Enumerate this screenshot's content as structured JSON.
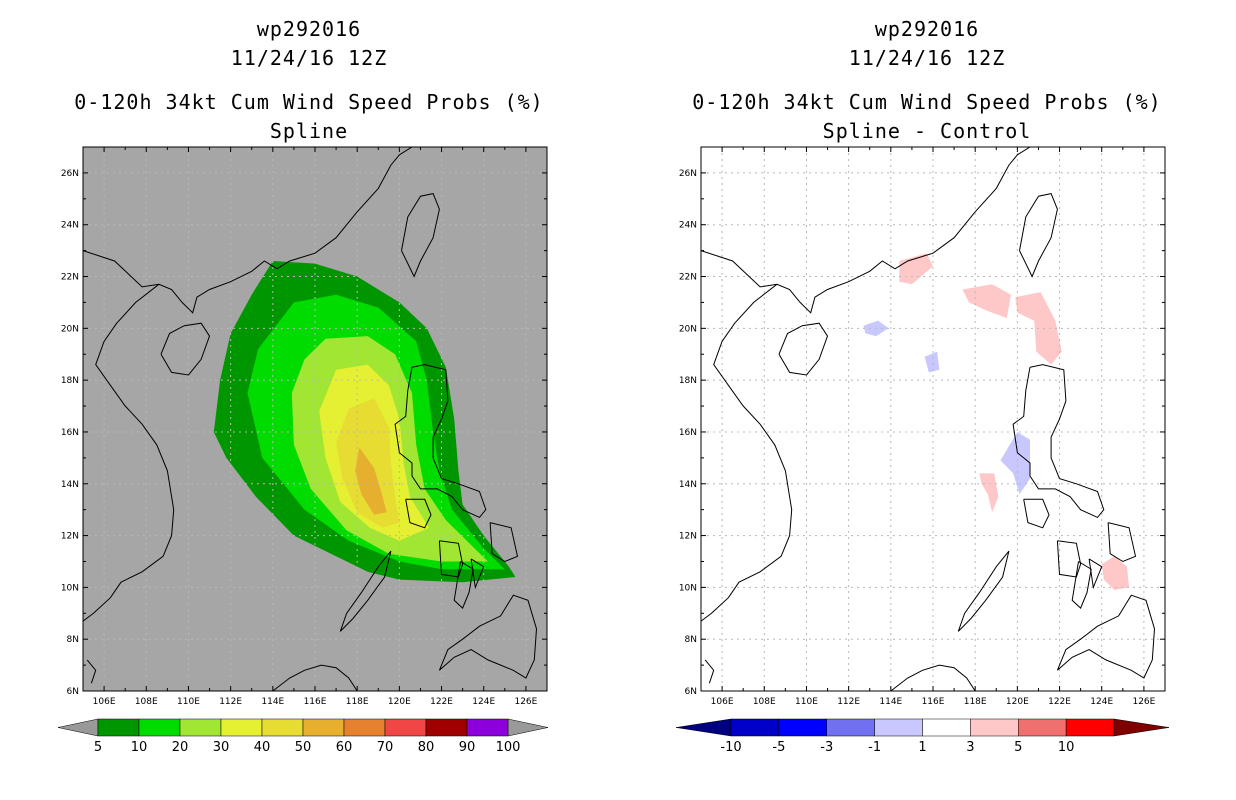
{
  "left_panel": {
    "storm_id": "wp292016",
    "datetime": "11/24/16 12Z",
    "title": "0-120h 34kt Cum Wind Speed Probs (%)",
    "subtitle": "Spline",
    "background_color": "#a6a6a6"
  },
  "right_panel": {
    "storm_id": "wp292016",
    "datetime": "11/24/16 12Z",
    "title": "0-120h 34kt Cum Wind Speed Probs (%)",
    "subtitle": "Spline - Control",
    "background_color": "#ffffff"
  },
  "map": {
    "lon_range": [
      105,
      127
    ],
    "lat_range": [
      6,
      27
    ],
    "x_ticks": [
      "106E",
      "108E",
      "110E",
      "112E",
      "114E",
      "116E",
      "118E",
      "120E",
      "122E",
      "124E",
      "126E"
    ],
    "x_tick_values": [
      106,
      108,
      110,
      112,
      114,
      116,
      118,
      120,
      122,
      124,
      126
    ],
    "y_ticks": [
      "6N",
      "8N",
      "10N",
      "12N",
      "14N",
      "16N",
      "18N",
      "20N",
      "22N",
      "24N",
      "26N"
    ],
    "y_tick_values": [
      6,
      8,
      10,
      12,
      14,
      16,
      18,
      20,
      22,
      24,
      26
    ]
  },
  "left_colorbar": {
    "labels": [
      "5",
      "10",
      "20",
      "30",
      "40",
      "50",
      "60",
      "70",
      "80",
      "90",
      "100"
    ],
    "colors": [
      "#009600",
      "#00dc00",
      "#a0e632",
      "#e6f032",
      "#e6dc32",
      "#e6af2d",
      "#e6822d",
      "#f04646",
      "#a00000",
      "#8c00dc"
    ],
    "end_color": "#999999"
  },
  "right_colorbar": {
    "labels": [
      "-10",
      "-5",
      "-3",
      "-1",
      "1",
      "3",
      "5",
      "10"
    ],
    "colors": [
      "#0000c8",
      "#0000ff",
      "#7070f0",
      "#c8c8ff",
      "#ffffff",
      "#ffc8c8",
      "#f07070",
      "#ff0000"
    ],
    "low_color": "#000080",
    "high_color": "#800000"
  },
  "chart_data": [
    {
      "type": "heatmap",
      "name": "Spline",
      "units": "%",
      "levels": [
        5,
        10,
        20,
        30,
        40,
        50,
        60,
        70,
        80,
        90,
        100
      ],
      "regions": [
        {
          "level": 5,
          "color": "#009600",
          "lonlat": [
            [
              114,
              22.6
            ],
            [
              116,
              22.5
            ],
            [
              118,
              22.0
            ],
            [
              120,
              21.0
            ],
            [
              121.3,
              20.0
            ],
            [
              122.2,
              18.5
            ],
            [
              122.6,
              16.5
            ],
            [
              122.8,
              14.5
            ],
            [
              123.0,
              13.2
            ],
            [
              124.0,
              12.0
            ],
            [
              125.2,
              10.8
            ],
            [
              125.5,
              10.4
            ],
            [
              123.0,
              10.2
            ],
            [
              120.0,
              10.3
            ],
            [
              118.5,
              10.6
            ],
            [
              117.0,
              11.2
            ],
            [
              115.0,
              12.0
            ],
            [
              113.2,
              13.5
            ],
            [
              111.8,
              15.0
            ],
            [
              111.2,
              16.0
            ],
            [
              111.5,
              18.0
            ],
            [
              112.0,
              19.8
            ],
            [
              113.0,
              21.3
            ],
            [
              114,
              22.6
            ]
          ]
        },
        {
          "level": 10,
          "color": "#00dc00",
          "lonlat": [
            [
              115,
              21.0
            ],
            [
              117,
              21.3
            ],
            [
              119,
              20.8
            ],
            [
              120.8,
              19.5
            ],
            [
              121.3,
              18.0
            ],
            [
              121.6,
              16.0
            ],
            [
              121.9,
              14.5
            ],
            [
              122.5,
              13.0
            ],
            [
              124.0,
              11.5
            ],
            [
              125.0,
              10.7
            ],
            [
              122.0,
              10.7
            ],
            [
              120.0,
              11.0
            ],
            [
              117.6,
              11.8
            ],
            [
              115.5,
              13.0
            ],
            [
              113.5,
              15.0
            ],
            [
              112.8,
              17.5
            ],
            [
              113.3,
              19.2
            ],
            [
              115,
              21.0
            ]
          ]
        },
        {
          "level": 20,
          "color": "#a0e632",
          "lonlat": [
            [
              116.5,
              19.6
            ],
            [
              118.5,
              19.7
            ],
            [
              119.8,
              19.0
            ],
            [
              120.6,
              17.5
            ],
            [
              120.8,
              15.5
            ],
            [
              121.2,
              13.8
            ],
            [
              122.2,
              12.6
            ],
            [
              124.2,
              11.0
            ],
            [
              122.0,
              11.0
            ],
            [
              119.5,
              11.3
            ],
            [
              117.5,
              12.2
            ],
            [
              115.8,
              13.8
            ],
            [
              115.0,
              15.5
            ],
            [
              114.9,
              17.5
            ],
            [
              115.5,
              18.8
            ],
            [
              116.5,
              19.6
            ]
          ]
        },
        {
          "level": 30,
          "color": "#e6f032",
          "lonlat": [
            [
              117.0,
              18.4
            ],
            [
              118.5,
              18.6
            ],
            [
              119.5,
              17.8
            ],
            [
              120.0,
              16.5
            ],
            [
              120.2,
              14.8
            ],
            [
              120.5,
              13.5
            ],
            [
              121.4,
              12.3
            ],
            [
              120.0,
              11.8
            ],
            [
              118.6,
              12.3
            ],
            [
              117.2,
              13.3
            ],
            [
              116.5,
              15.0
            ],
            [
              116.2,
              16.8
            ],
            [
              117.0,
              18.4
            ]
          ]
        },
        {
          "level": 40,
          "color": "#e6dc32",
          "lonlat": [
            [
              117.6,
              16.9
            ],
            [
              118.8,
              17.3
            ],
            [
              119.5,
              16.2
            ],
            [
              119.6,
              14.8
            ],
            [
              119.8,
              13.5
            ],
            [
              120.0,
              12.5
            ],
            [
              119.2,
              12.3
            ],
            [
              118.0,
              12.9
            ],
            [
              117.3,
              14.2
            ],
            [
              117.0,
              15.6
            ],
            [
              117.6,
              16.9
            ]
          ]
        },
        {
          "level": 50,
          "color": "#e6af2d",
          "lonlat": [
            [
              118.1,
              15.4
            ],
            [
              118.8,
              14.6
            ],
            [
              119.1,
              13.8
            ],
            [
              119.4,
              12.9
            ],
            [
              118.8,
              12.8
            ],
            [
              118.2,
              13.6
            ],
            [
              117.9,
              14.5
            ],
            [
              118.1,
              15.4
            ]
          ]
        }
      ]
    },
    {
      "type": "heatmap",
      "name": "Spline - Control",
      "units": "%",
      "levels": [
        -10,
        -5,
        -3,
        -1,
        1,
        3,
        5,
        10
      ],
      "regions": [
        {
          "level": 1,
          "color": "#ffc8c8",
          "lonlat": [
            [
              114.4,
              22.6
            ],
            [
              115.7,
              22.9
            ],
            [
              116.0,
              22.4
            ],
            [
              115.0,
              21.7
            ],
            [
              114.4,
              21.8
            ]
          ]
        },
        {
          "level": 1,
          "color": "#ffc8c8",
          "lonlat": [
            [
              117.4,
              21.5
            ],
            [
              118.8,
              21.7
            ],
            [
              119.7,
              21.3
            ],
            [
              119.5,
              20.4
            ],
            [
              118.5,
              20.7
            ],
            [
              117.7,
              21.0
            ]
          ]
        },
        {
          "level": 1,
          "color": "#ffc8c8",
          "lonlat": [
            [
              119.9,
              21.2
            ],
            [
              121.1,
              21.4
            ],
            [
              121.8,
              20.3
            ],
            [
              122.1,
              19.1
            ],
            [
              121.6,
              18.6
            ],
            [
              120.9,
              19.1
            ],
            [
              120.8,
              20.3
            ],
            [
              120.0,
              20.6
            ]
          ]
        },
        {
          "level": 1,
          "color": "#ffc8c8",
          "lonlat": [
            [
              118.2,
              14.4
            ],
            [
              118.9,
              14.4
            ],
            [
              119.1,
              13.5
            ],
            [
              118.8,
              12.9
            ],
            [
              118.6,
              13.6
            ],
            [
              118.3,
              14.0
            ]
          ]
        },
        {
          "level": 1,
          "color": "#ffc8c8",
          "lonlat": [
            [
              124.0,
              10.9
            ],
            [
              124.6,
              11.2
            ],
            [
              125.2,
              10.8
            ],
            [
              125.3,
              10.0
            ],
            [
              124.6,
              9.9
            ],
            [
              124.1,
              10.3
            ]
          ]
        },
        {
          "level": -1,
          "color": "#c8c8ff",
          "lonlat": [
            [
              112.7,
              20.1
            ],
            [
              113.4,
              20.3
            ],
            [
              113.9,
              20.0
            ],
            [
              113.3,
              19.7
            ],
            [
              112.8,
              19.8
            ]
          ]
        },
        {
          "level": -1,
          "color": "#c8c8ff",
          "lonlat": [
            [
              115.6,
              18.9
            ],
            [
              116.2,
              19.1
            ],
            [
              116.3,
              18.4
            ],
            [
              115.8,
              18.3
            ]
          ]
        },
        {
          "level": -1,
          "color": "#c8c8ff",
          "lonlat": [
            [
              119.2,
              14.9
            ],
            [
              120.0,
              16.0
            ],
            [
              120.6,
              15.7
            ],
            [
              120.6,
              14.2
            ],
            [
              120.1,
              13.6
            ],
            [
              119.8,
              14.4
            ]
          ]
        }
      ]
    }
  ]
}
